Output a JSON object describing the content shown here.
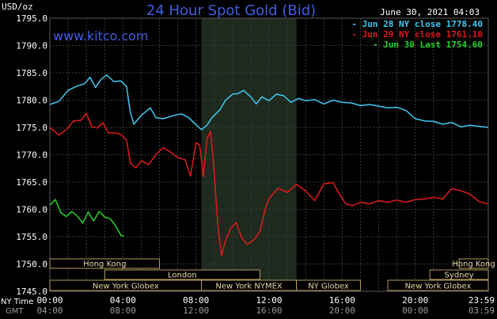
{
  "header": {
    "title": "24 Hour Spot Gold (Bid)",
    "timestamp": "June 30, 2021 04:03",
    "site": "www.kitco.com",
    "unit": "USD/oz"
  },
  "colors": {
    "background": "#000000",
    "grid": "#3a3a3a",
    "axis_text": "#ffffff",
    "title": "#3f5fe0",
    "session_shade": "#1e2a1e",
    "jun28": "#3ec9f2",
    "jun29": "#e11b1b",
    "jun30": "#27d42b",
    "market_box_fill": "#000000",
    "market_box_stroke": "#b39b5c",
    "market_box_text": "#e8d7a8"
  },
  "chart_data": {
    "type": "line",
    "title": "24 Hour Spot Gold (Bid)",
    "ylabel": "USD/oz",
    "ylim": [
      1745,
      1795
    ],
    "y_ticks": [
      "1745.0",
      "1750.0",
      "1755.0",
      "1760.0",
      "1765.0",
      "1770.0",
      "1775.0",
      "1780.0",
      "1785.0",
      "1790.0",
      "1795.0"
    ],
    "x_unit": "hours (NY time)",
    "xlim": [
      0,
      24
    ],
    "x_ticks_ny": [
      "00:00",
      "04:00",
      "08:00",
      "12:00",
      "16:00",
      "20:00",
      "23:59"
    ],
    "x_ticks_gmt": [
      "04:00",
      "08:00",
      "12:00",
      "16:00",
      "20:00",
      "00:00",
      "03:59"
    ],
    "x_row_label_ny": "NY Time",
    "x_row_label_gmt": "GMT",
    "grid": true,
    "legend_position": "top-right",
    "highlight_window_hours": [
      8.3,
      13.5
    ],
    "series": [
      {
        "name": "Jun 28 NY close 1778.40",
        "color_key": "jun28",
        "points": [
          [
            0,
            1779.2
          ],
          [
            0.5,
            1779.8
          ],
          [
            1.0,
            1781.8
          ],
          [
            1.5,
            1782.6
          ],
          [
            1.9,
            1783.0
          ],
          [
            2.2,
            1784.2
          ],
          [
            2.5,
            1782.3
          ],
          [
            2.8,
            1783.8
          ],
          [
            3.1,
            1784.6
          ],
          [
            3.5,
            1783.4
          ],
          [
            3.9,
            1783.5
          ],
          [
            4.2,
            1782.5
          ],
          [
            4.4,
            1777.8
          ],
          [
            4.6,
            1775.6
          ],
          [
            5.0,
            1777.2
          ],
          [
            5.5,
            1778.6
          ],
          [
            5.8,
            1776.8
          ],
          [
            6.2,
            1776.6
          ],
          [
            6.8,
            1777.2
          ],
          [
            7.2,
            1777.5
          ],
          [
            7.6,
            1776.8
          ],
          [
            8.0,
            1775.5
          ],
          [
            8.3,
            1774.6
          ],
          [
            8.6,
            1775.4
          ],
          [
            8.9,
            1776.9
          ],
          [
            9.3,
            1778.2
          ],
          [
            9.6,
            1779.9
          ],
          [
            10.0,
            1781.1
          ],
          [
            10.3,
            1781.2
          ],
          [
            10.6,
            1781.8
          ],
          [
            11.0,
            1780.6
          ],
          [
            11.3,
            1779.3
          ],
          [
            11.6,
            1780.6
          ],
          [
            12.0,
            1779.9
          ],
          [
            12.4,
            1781.1
          ],
          [
            12.8,
            1780.8
          ],
          [
            13.2,
            1779.6
          ],
          [
            13.6,
            1780.3
          ],
          [
            14.0,
            1779.9
          ],
          [
            14.5,
            1780.1
          ],
          [
            15.0,
            1779.3
          ],
          [
            15.5,
            1780.0
          ],
          [
            16.0,
            1779.6
          ],
          [
            16.5,
            1779.5
          ],
          [
            17.0,
            1779.0
          ],
          [
            17.5,
            1779.2
          ],
          [
            18.0,
            1778.9
          ],
          [
            18.5,
            1778.6
          ],
          [
            19.0,
            1778.7
          ],
          [
            19.5,
            1778.1
          ],
          [
            20.0,
            1776.6
          ],
          [
            20.5,
            1776.2
          ],
          [
            21.0,
            1776.1
          ],
          [
            21.5,
            1775.6
          ],
          [
            22.0,
            1775.9
          ],
          [
            22.5,
            1775.1
          ],
          [
            23.0,
            1775.4
          ],
          [
            23.5,
            1775.2
          ],
          [
            24.0,
            1775.0
          ]
        ]
      },
      {
        "name": "Jun 29 NY close 1761.10",
        "color_key": "jun29",
        "points": [
          [
            0,
            1775.0
          ],
          [
            0.5,
            1773.6
          ],
          [
            0.9,
            1774.6
          ],
          [
            1.3,
            1776.2
          ],
          [
            1.7,
            1776.3
          ],
          [
            2.0,
            1777.6
          ],
          [
            2.3,
            1775.1
          ],
          [
            2.6,
            1774.9
          ],
          [
            2.9,
            1775.9
          ],
          [
            3.2,
            1774.0
          ],
          [
            3.6,
            1774.0
          ],
          [
            3.9,
            1773.7
          ],
          [
            4.2,
            1772.7
          ],
          [
            4.4,
            1768.5
          ],
          [
            4.7,
            1767.6
          ],
          [
            5.0,
            1768.9
          ],
          [
            5.4,
            1768.2
          ],
          [
            5.8,
            1770.0
          ],
          [
            6.2,
            1771.3
          ],
          [
            6.6,
            1770.5
          ],
          [
            7.0,
            1769.5
          ],
          [
            7.4,
            1769.1
          ],
          [
            7.7,
            1766.1
          ],
          [
            8.0,
            1772.2
          ],
          [
            8.2,
            1771.8
          ],
          [
            8.4,
            1766.0
          ],
          [
            8.6,
            1772.9
          ],
          [
            8.8,
            1774.3
          ],
          [
            9.0,
            1766.6
          ],
          [
            9.2,
            1756.8
          ],
          [
            9.4,
            1751.5
          ],
          [
            9.6,
            1754.2
          ],
          [
            9.9,
            1756.5
          ],
          [
            10.2,
            1757.6
          ],
          [
            10.5,
            1754.8
          ],
          [
            10.8,
            1753.6
          ],
          [
            11.2,
            1754.5
          ],
          [
            11.5,
            1756.0
          ],
          [
            11.8,
            1760.2
          ],
          [
            12.0,
            1762.0
          ],
          [
            12.5,
            1763.9
          ],
          [
            13.0,
            1763.1
          ],
          [
            13.5,
            1764.6
          ],
          [
            14.0,
            1763.4
          ],
          [
            14.5,
            1761.6
          ],
          [
            15.0,
            1764.7
          ],
          [
            15.5,
            1764.9
          ],
          [
            15.8,
            1763.1
          ],
          [
            16.2,
            1761.0
          ],
          [
            16.6,
            1760.7
          ],
          [
            17.0,
            1761.3
          ],
          [
            17.5,
            1761.0
          ],
          [
            18.0,
            1761.6
          ],
          [
            18.5,
            1761.3
          ],
          [
            19.0,
            1761.7
          ],
          [
            19.5,
            1761.3
          ],
          [
            20.0,
            1761.8
          ],
          [
            20.5,
            1761.9
          ],
          [
            21.0,
            1762.2
          ],
          [
            21.5,
            1761.9
          ],
          [
            22.0,
            1763.8
          ],
          [
            22.5,
            1763.4
          ],
          [
            23.0,
            1762.8
          ],
          [
            23.5,
            1761.4
          ],
          [
            24.0,
            1761.0
          ]
        ]
      },
      {
        "name": "Jun 30 Last 1754.60",
        "color_key": "jun30",
        "points": [
          [
            0,
            1760.8
          ],
          [
            0.3,
            1761.8
          ],
          [
            0.6,
            1759.4
          ],
          [
            0.9,
            1758.7
          ],
          [
            1.2,
            1759.6
          ],
          [
            1.5,
            1758.8
          ],
          [
            1.8,
            1757.5
          ],
          [
            2.1,
            1759.5
          ],
          [
            2.4,
            1757.9
          ],
          [
            2.7,
            1759.6
          ],
          [
            3.0,
            1758.6
          ],
          [
            3.3,
            1758.3
          ],
          [
            3.6,
            1757.0
          ],
          [
            3.9,
            1755.2
          ],
          [
            4.05,
            1755.1
          ]
        ]
      }
    ]
  },
  "markets": {
    "row1": [
      {
        "label": "Hong Kong",
        "start": 0,
        "end": 6.0
      },
      {
        "label": "Hong Kong",
        "start": 22.4,
        "end": 24.0
      }
    ],
    "row2": [
      {
        "label": "London",
        "start": 3.0,
        "end": 11.5
      },
      {
        "label": "Sydney",
        "start": 20.8,
        "end": 24.0
      }
    ],
    "row3": [
      {
        "label": "New York Globex",
        "start": 0,
        "end": 8.3
      },
      {
        "label": "New York NYMEX",
        "start": 8.3,
        "end": 13.5
      },
      {
        "label": "NY Globex",
        "start": 13.5,
        "end": 17.0
      },
      {
        "label": "New York Globex",
        "start": 18.5,
        "end": 24.0
      }
    ]
  }
}
